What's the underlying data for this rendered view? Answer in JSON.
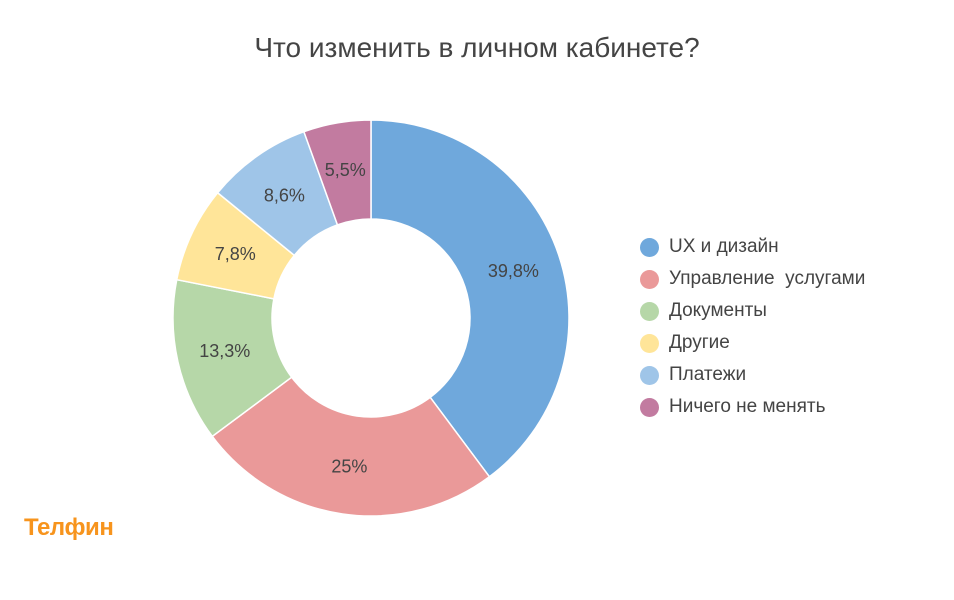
{
  "chart_data": {
    "type": "pie",
    "subtype": "donut",
    "title": "Что изменить в личном кабинете?",
    "categories": [
      "UX и дизайн",
      "Управление  услугами",
      "Документы",
      "Другие",
      "Платежи",
      "Ничего не менять"
    ],
    "values": [
      39.8,
      25,
      13.3,
      7.8,
      8.6,
      5.5
    ],
    "labels": [
      "39,8%",
      "25%",
      "13,3%",
      "7,8%",
      "8,6%",
      "5,5%"
    ],
    "colors": [
      "#6fa8dc",
      "#ea9999",
      "#b6d7a8",
      "#ffe599",
      "#9fc5e8",
      "#c27ba0"
    ],
    "legend_position": "right"
  },
  "logo": "Телфин"
}
